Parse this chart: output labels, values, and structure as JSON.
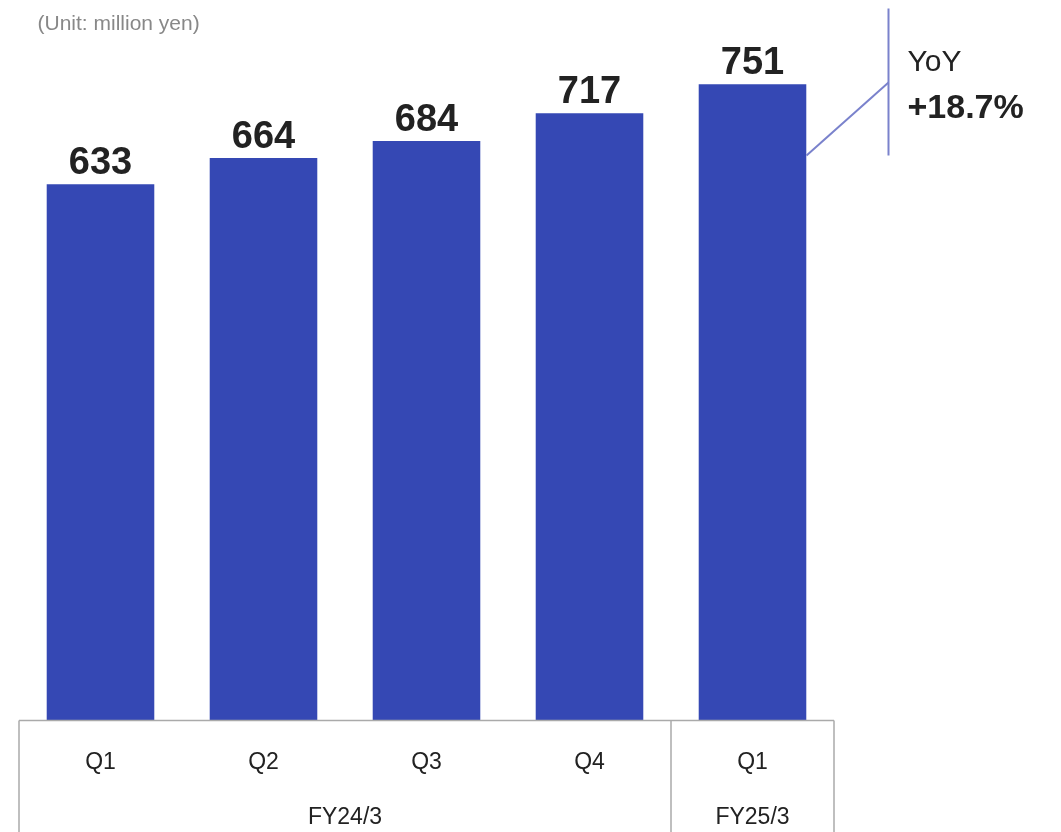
{
  "chart_data": {
    "type": "bar",
    "categories": [
      "Q1",
      "Q2",
      "Q3",
      "Q4",
      "Q1"
    ],
    "values": [
      633,
      664,
      684,
      717,
      751
    ],
    "color": "#3548b4",
    "ylim": [
      0,
      850
    ],
    "data_labels": true,
    "grid": false,
    "tick_labels": "x",
    "annotations": [
      "(Unit: million yen)",
      "YoY",
      "+18.7%",
      "FY24/3",
      "FY25/3"
    ]
  }
}
